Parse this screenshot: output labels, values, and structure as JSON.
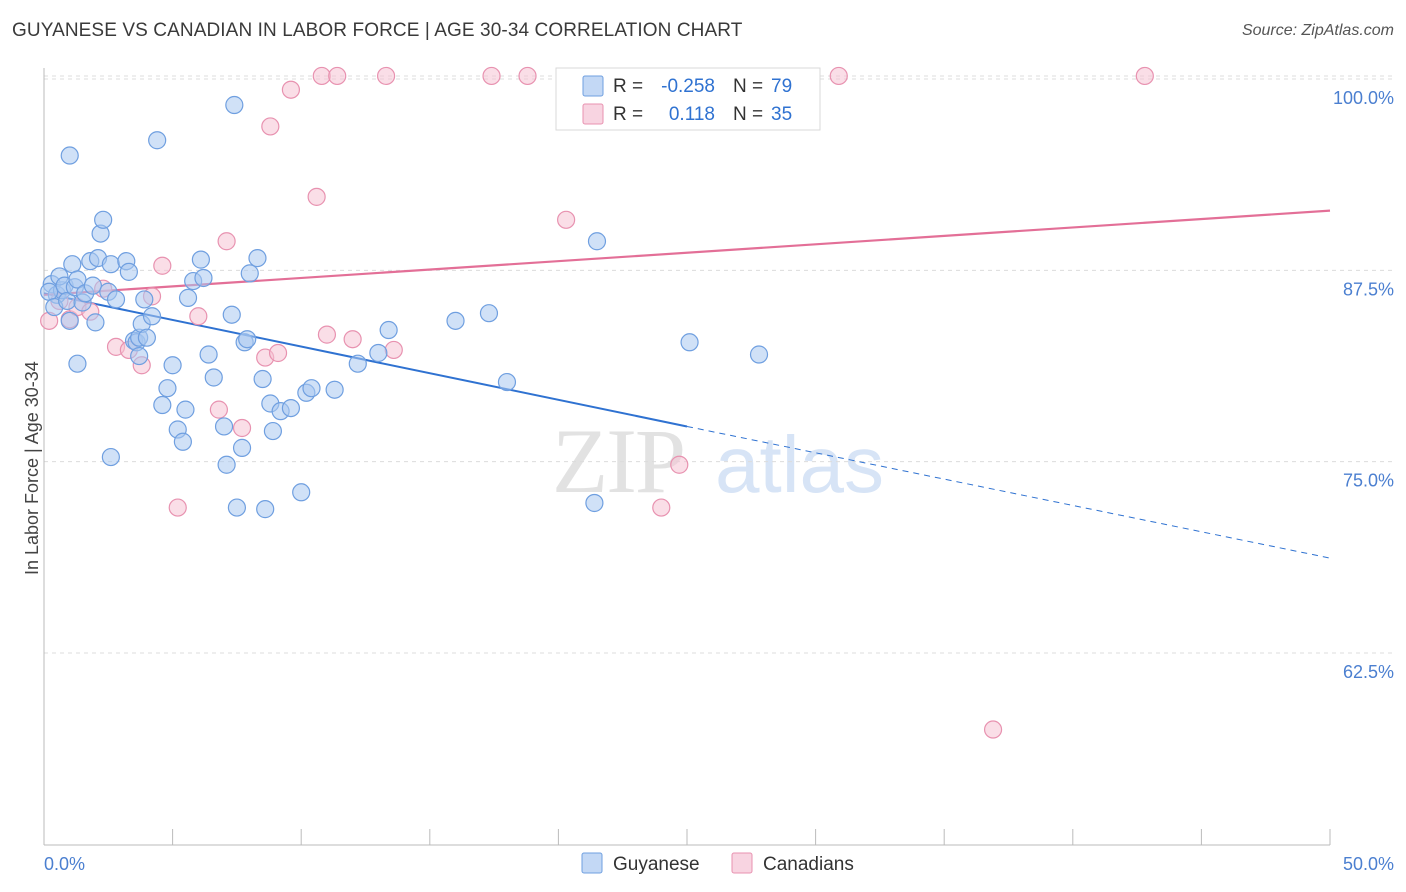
{
  "header": {
    "title": "GUYANESE VS CANADIAN IN LABOR FORCE | AGE 30-34 CORRELATION CHART",
    "source": "Source: ZipAtlas.com"
  },
  "colors": {
    "blue": "#6f9fe0",
    "blue_fill": "#a9c8f1",
    "blue_line": "#2f72d1",
    "pink": "#e892b0",
    "pink_fill": "#f5c2d4",
    "pink_line": "#e36f97",
    "axis_label": "#4b7fd0",
    "grid": "#dcdcdc"
  },
  "chart_data": {
    "type": "scatter",
    "title": "GUYANESE VS CANADIAN IN LABOR FORCE | AGE 30-34 CORRELATION CHART",
    "xlabel": "",
    "ylabel": "In Labor Force | Age 30-34",
    "xlim": [
      0,
      50
    ],
    "ylim": [
      50,
      101.5
    ],
    "x_tick_labels": [
      "0.0%",
      "50.0%"
    ],
    "y_ticks": [
      62.5,
      75.0,
      87.5,
      100.0
    ],
    "y_tick_labels": [
      "62.5%",
      "75.0%",
      "87.5%",
      "100.0%"
    ],
    "legend": {
      "position": "top-center",
      "rows": [
        {
          "r_label": "R =",
          "r_value": "-0.258",
          "n_label": "N =",
          "n_value": "79"
        },
        {
          "r_label": "R =",
          "r_value": "0.118",
          "n_label": "N =",
          "n_value": "35"
        }
      ]
    },
    "bottom_legend": [
      "Guyanese",
      "Canadians"
    ],
    "watermark": "ZIPatlas",
    "series": [
      {
        "name": "Guyanese",
        "color": "#6f9fe0",
        "r": -0.258,
        "n": 79,
        "trend": {
          "x0": 0,
          "y0": 86.0,
          "x1": 25,
          "y1": 77.3,
          "dash_to_x": 50,
          "dash_to_y": 68.7
        },
        "points": [
          [
            0.3,
            86.6
          ],
          [
            0.5,
            85.9
          ],
          [
            0.7,
            86.2
          ],
          [
            0.2,
            86.1
          ],
          [
            0.4,
            85.1
          ],
          [
            0.6,
            87.1
          ],
          [
            0.8,
            86.5
          ],
          [
            0.9,
            85.5
          ],
          [
            1.0,
            84.2
          ],
          [
            1.2,
            86.4
          ],
          [
            1.1,
            87.9
          ],
          [
            1.3,
            86.9
          ],
          [
            1.5,
            85.4
          ],
          [
            1.6,
            86.0
          ],
          [
            1.8,
            88.1
          ],
          [
            1.9,
            86.5
          ],
          [
            2.0,
            84.1
          ],
          [
            2.1,
            88.3
          ],
          [
            2.2,
            89.9
          ],
          [
            2.3,
            90.8
          ],
          [
            2.5,
            86.1
          ],
          [
            2.6,
            87.9
          ],
          [
            2.8,
            85.6
          ],
          [
            3.2,
            88.1
          ],
          [
            3.3,
            87.4
          ],
          [
            3.5,
            82.9
          ],
          [
            3.6,
            82.8
          ],
          [
            3.7,
            83.1
          ],
          [
            3.8,
            84.0
          ],
          [
            3.9,
            85.6
          ],
          [
            4.0,
            83.1
          ],
          [
            4.2,
            84.5
          ],
          [
            4.6,
            78.7
          ],
          [
            4.8,
            79.8
          ],
          [
            5.0,
            81.3
          ],
          [
            5.2,
            77.1
          ],
          [
            5.4,
            76.3
          ],
          [
            5.5,
            78.4
          ],
          [
            5.6,
            85.7
          ],
          [
            5.8,
            86.8
          ],
          [
            6.1,
            88.2
          ],
          [
            6.2,
            87.0
          ],
          [
            6.4,
            82.0
          ],
          [
            6.6,
            80.5
          ],
          [
            7.0,
            77.3
          ],
          [
            7.1,
            74.8
          ],
          [
            7.3,
            84.6
          ],
          [
            7.5,
            72.0
          ],
          [
            7.7,
            75.9
          ],
          [
            7.8,
            82.8
          ],
          [
            7.9,
            83.0
          ],
          [
            8.0,
            87.3
          ],
          [
            8.3,
            88.3
          ],
          [
            8.5,
            80.4
          ],
          [
            8.6,
            71.9
          ],
          [
            8.8,
            78.8
          ],
          [
            8.9,
            77.0
          ],
          [
            9.2,
            78.3
          ],
          [
            9.6,
            78.5
          ],
          [
            10.0,
            73.0
          ],
          [
            10.2,
            79.5
          ],
          [
            10.4,
            79.8
          ],
          [
            11.3,
            79.7
          ],
          [
            12.2,
            81.4
          ],
          [
            13.0,
            82.1
          ],
          [
            13.4,
            83.6
          ],
          [
            16.0,
            84.2
          ],
          [
            17.3,
            84.7
          ],
          [
            18.0,
            80.2
          ],
          [
            21.4,
            72.3
          ],
          [
            21.5,
            89.4
          ],
          [
            25.1,
            82.8
          ],
          [
            27.8,
            82.0
          ],
          [
            2.6,
            75.3
          ],
          [
            3.7,
            81.9
          ],
          [
            1.3,
            81.4
          ],
          [
            7.4,
            98.3
          ],
          [
            4.4,
            96.0
          ],
          [
            1.0,
            95.0
          ]
        ]
      },
      {
        "name": "Canadians",
        "color": "#e892b0",
        "r": 0.118,
        "n": 35,
        "trend": {
          "x0": 0,
          "y0": 85.9,
          "x1": 50,
          "y1": 91.4
        },
        "points": [
          [
            0.2,
            84.2
          ],
          [
            0.6,
            85.5
          ],
          [
            1.0,
            84.3
          ],
          [
            1.3,
            85.1
          ],
          [
            1.8,
            84.8
          ],
          [
            2.3,
            86.3
          ],
          [
            2.8,
            82.5
          ],
          [
            3.3,
            82.3
          ],
          [
            3.8,
            81.3
          ],
          [
            4.2,
            85.8
          ],
          [
            4.6,
            87.8
          ],
          [
            5.2,
            72.0
          ],
          [
            6.0,
            84.5
          ],
          [
            6.8,
            78.4
          ],
          [
            7.1,
            89.4
          ],
          [
            7.7,
            77.2
          ],
          [
            8.6,
            81.8
          ],
          [
            9.1,
            82.1
          ],
          [
            11.0,
            83.3
          ],
          [
            12.0,
            83.0
          ],
          [
            13.6,
            82.3
          ],
          [
            8.8,
            96.9
          ],
          [
            9.6,
            99.3
          ],
          [
            10.6,
            92.3
          ],
          [
            10.8,
            100.2
          ],
          [
            11.4,
            100.2
          ],
          [
            13.3,
            100.2
          ],
          [
            17.4,
            100.2
          ],
          [
            18.8,
            100.2
          ],
          [
            20.3,
            90.8
          ],
          [
            24.0,
            72.0
          ],
          [
            24.7,
            74.8
          ],
          [
            30.9,
            100.2
          ],
          [
            42.8,
            100.2
          ],
          [
            36.9,
            57.5
          ]
        ]
      }
    ]
  }
}
